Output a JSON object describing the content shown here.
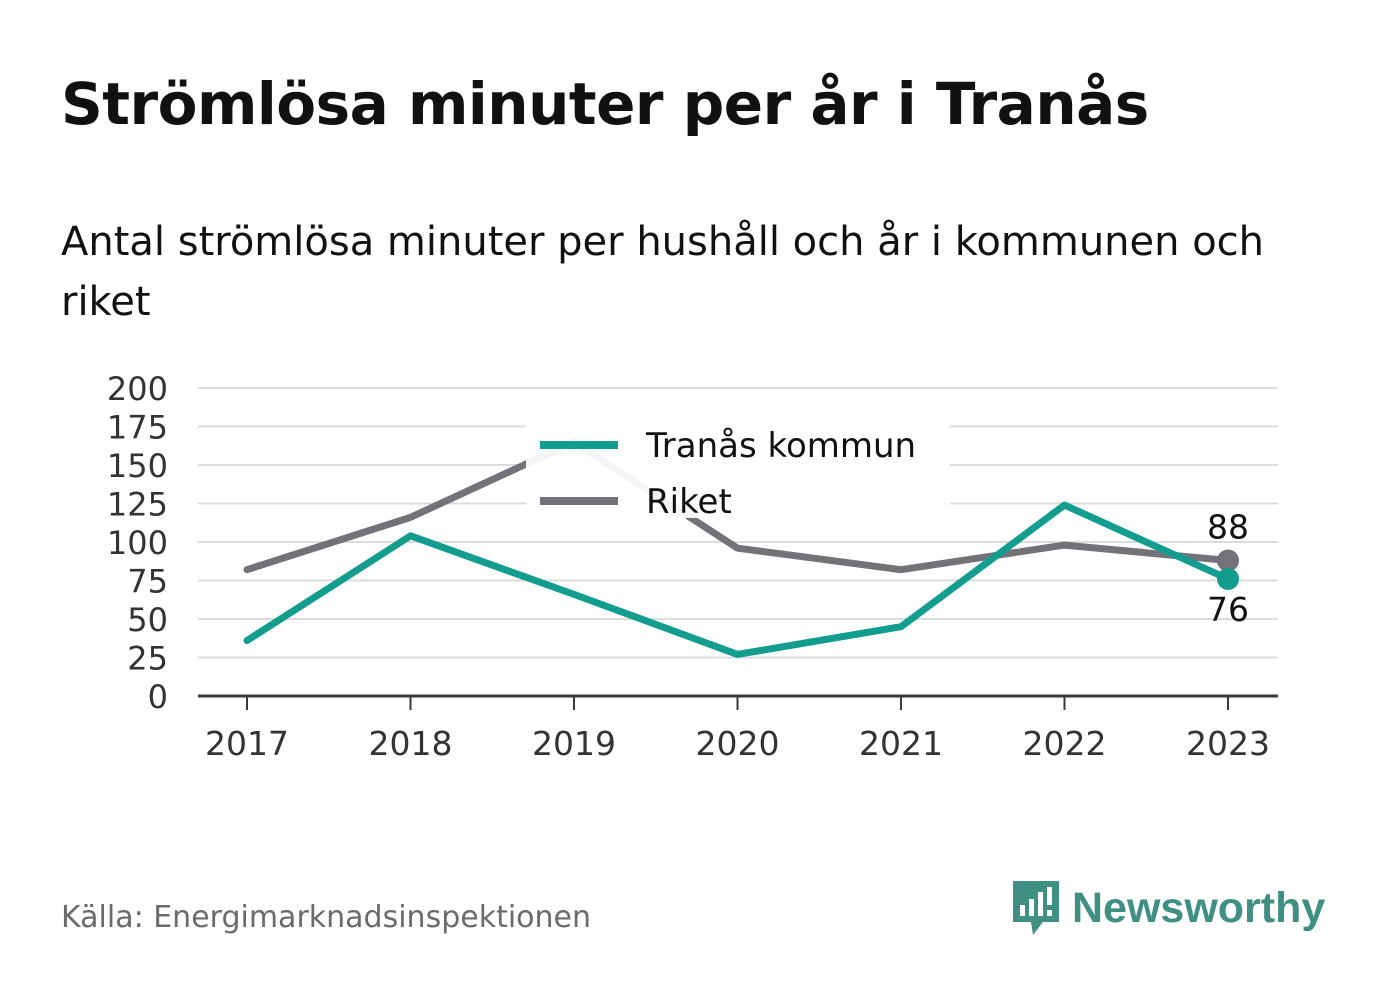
{
  "header": {
    "title": "Strömlösa minuter per år i Tranås",
    "subtitle": "Antal strömlösa minuter per hushåll och år i kommunen och riket"
  },
  "footer": {
    "source": "Källa: Energimarknadsinspektionen",
    "brand": "Newsworthy",
    "brand_icon": "bar-chart-speech-bubble-icon"
  },
  "colors": {
    "tranas": "#139d8f",
    "riket": "#737278",
    "grid": "#dcdcdc",
    "axis": "#3a3a3a",
    "brand": "#3f8f83"
  },
  "chart_data": {
    "type": "line",
    "x": [
      "2017",
      "2018",
      "2019",
      "2020",
      "2021",
      "2022",
      "2023"
    ],
    "ylim": [
      0,
      200
    ],
    "yticks": [
      "0",
      "25",
      "50",
      "75",
      "100",
      "125",
      "150",
      "175",
      "200"
    ],
    "grid": true,
    "legend_position": "top-center",
    "series": [
      {
        "name": "Tranås kommun",
        "color": "#139d8f",
        "values": [
          36,
          104,
          66,
          27,
          45,
          124,
          76
        ],
        "end_label": "76"
      },
      {
        "name": "Riket",
        "color": "#737278",
        "values": [
          82,
          116,
          165,
          96,
          82,
          98,
          88
        ],
        "end_label": "88"
      }
    ]
  }
}
